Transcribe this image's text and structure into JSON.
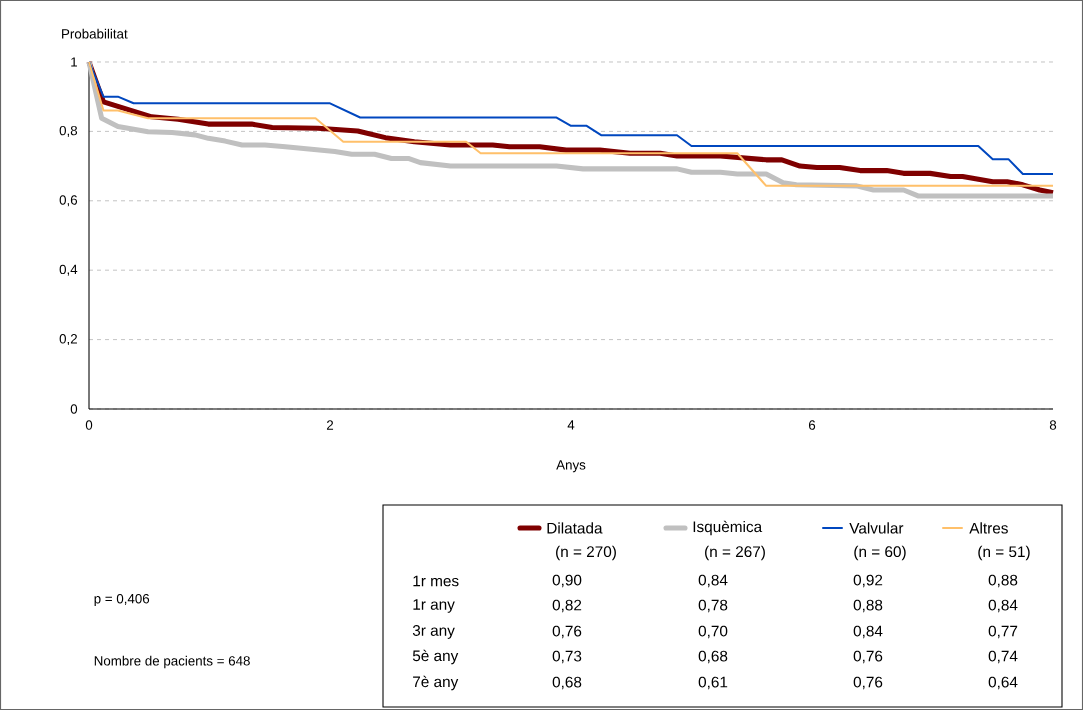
{
  "chart_data": {
    "type": "line",
    "xlabel": "Anys",
    "ylabel": "Probabilitat",
    "xlim": [
      0,
      8
    ],
    "xticks": [
      0,
      2,
      4,
      6,
      8
    ],
    "ylim": [
      0,
      1
    ],
    "yticks": [
      {
        "value": 0,
        "label": "0"
      },
      {
        "value": 0.2,
        "label": "0,2"
      },
      {
        "value": 0.4,
        "label": "0,4"
      },
      {
        "value": 0.6,
        "label": "0,6"
      },
      {
        "value": 0.8,
        "label": "0,8"
      },
      {
        "value": 1,
        "label": "1"
      }
    ],
    "grid": "y",
    "legend": "bottom right",
    "marker": "none",
    "line_style": "solid",
    "series": [
      {
        "name": "Dilatada",
        "color": "#7f0000",
        "x": [
          0,
          0.12,
          0.52,
          0.74,
          0.99,
          1.35,
          1.52,
          1.9,
          2.23,
          2.46,
          2.7,
          3.0,
          3.35,
          3.49,
          3.74,
          3.96,
          4.24,
          4.49,
          4.74,
          4.88,
          5.24,
          5.62,
          5.75,
          5.9,
          6.04,
          6.23,
          6.4,
          6.62,
          6.76,
          6.98,
          7.15,
          7.25,
          7.5,
          7.62,
          7.75,
          7.89,
          8
        ],
        "values": [
          1,
          0.885,
          0.842,
          0.835,
          0.821,
          0.821,
          0.811,
          0.809,
          0.801,
          0.782,
          0.77,
          0.761,
          0.761,
          0.756,
          0.756,
          0.746,
          0.746,
          0.737,
          0.737,
          0.729,
          0.729,
          0.718,
          0.718,
          0.7,
          0.696,
          0.696,
          0.687,
          0.687,
          0.679,
          0.679,
          0.67,
          0.67,
          0.655,
          0.655,
          0.646,
          0.631,
          0.623
        ]
      },
      {
        "name": "Isquèmica",
        "color": "#c0c0c0",
        "x": [
          0,
          0.105,
          0.24,
          0.49,
          0.69,
          0.88,
          0.99,
          1.13,
          1.27,
          1.46,
          1.63,
          2.04,
          2.18,
          2.37,
          2.51,
          2.65,
          2.75,
          3.0,
          3.88,
          4.1,
          4.88,
          5.0,
          5.24,
          5.38,
          5.62,
          5.76,
          5.87,
          6.37,
          6.51,
          6.76,
          6.88,
          8
        ],
        "values": [
          1,
          0.838,
          0.814,
          0.799,
          0.797,
          0.79,
          0.78,
          0.772,
          0.761,
          0.761,
          0.756,
          0.742,
          0.734,
          0.734,
          0.722,
          0.722,
          0.71,
          0.7,
          0.7,
          0.692,
          0.692,
          0.682,
          0.682,
          0.677,
          0.677,
          0.652,
          0.646,
          0.643,
          0.631,
          0.631,
          0.614,
          0.614
        ]
      },
      {
        "name": "Valvular",
        "color": "#0047bf",
        "x": [
          0,
          0.12,
          0.24,
          0.37,
          2.0,
          2.25,
          3.88,
          4.0,
          4.13,
          4.25,
          4.88,
          5.0,
          7.38,
          7.5,
          7.63,
          7.75,
          8
        ],
        "values": [
          1,
          0.9,
          0.9,
          0.881,
          0.881,
          0.84,
          0.84,
          0.816,
          0.816,
          0.789,
          0.789,
          0.758,
          0.758,
          0.72,
          0.72,
          0.677,
          0.677
        ]
      },
      {
        "name": "Altres",
        "color": "#ffc06a",
        "x": [
          0,
          0.12,
          0.24,
          0.49,
          1.88,
          2.11,
          3.13,
          3.25,
          5.38,
          5.62,
          8
        ],
        "values": [
          1,
          0.86,
          0.86,
          0.838,
          0.838,
          0.77,
          0.77,
          0.737,
          0.737,
          0.643,
          0.643
        ]
      }
    ],
    "annotations": [
      "p = 0,406",
      "Nombre de pacients = 648",
      "(n = 270)",
      "(n = 267)",
      "(n = 60)",
      "(n = 51)",
      "1r mes",
      "1r any",
      "3r any",
      "5è any",
      "7è any",
      "0,90",
      "0,84",
      "0,92",
      "0,88",
      "0,82",
      "0,78",
      "0,88",
      "0,84",
      "0,76",
      "0,70",
      "0,84",
      "0,77",
      "0,73",
      "0,68",
      "0,76",
      "0,74",
      "0,68",
      "0,61",
      "0,76",
      "0,64"
    ]
  }
}
